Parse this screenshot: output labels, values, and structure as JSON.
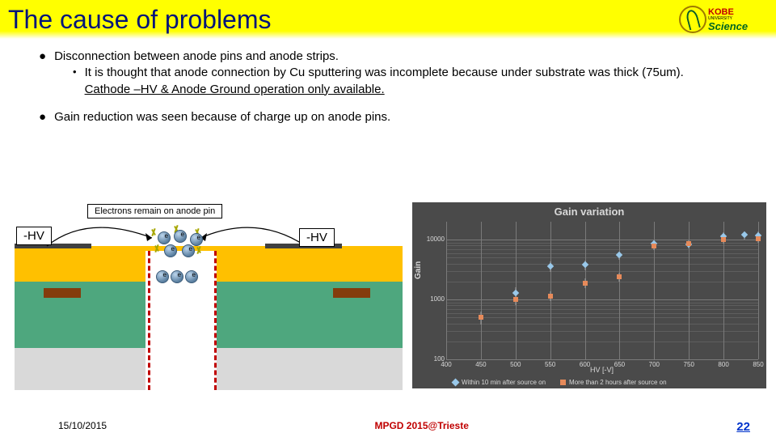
{
  "title": "The cause of problems",
  "logo": {
    "line1": "KOBE",
    "line2": "UNIVERSITY",
    "line3": "Science"
  },
  "bullets": {
    "b1": "Disconnection between anode pins and anode strips.",
    "b1a": "It is thought that anode connection by Cu sputtering was incomplete because under substrate was thick (75um).",
    "b1b": "Cathode –HV & Anode Ground operation only available.",
    "b2": "Gain reduction was seen because of charge up on anode pins."
  },
  "diagram": {
    "electron_label": "Electrons remain on anode pin",
    "hv_left": "-HV",
    "hv_right": "-HV",
    "colors": {
      "top": "#ffc000",
      "mid": "#4ea77e",
      "bot": "#d9d9d9",
      "cathode": "#404040",
      "strip": "#843c0c",
      "dash": "#c00000"
    }
  },
  "chart": {
    "type": "scatter",
    "title": "Gain variation",
    "ylabel": "Gain",
    "xlabel": "HV [-V]",
    "background": "#4a4a4a",
    "xlim": [
      400,
      850
    ],
    "xtick_step": 50,
    "xticks": [
      "400",
      "450",
      "500",
      "550",
      "600",
      "650",
      "700",
      "750",
      "800",
      "850"
    ],
    "yscale": "log",
    "ylim": [
      100,
      20000
    ],
    "yticks": [
      {
        "v": 100,
        "label": "100"
      },
      {
        "v": 1000,
        "label": "1000"
      },
      {
        "v": 10000,
        "label": "10000"
      }
    ],
    "series": [
      {
        "name": "within10",
        "label": "Within 10 min after source on",
        "marker": "diamond",
        "color": "#99c8ea",
        "points": [
          {
            "x": 500,
            "y": 1300,
            "err": 300
          },
          {
            "x": 550,
            "y": 3600,
            "err": 700
          },
          {
            "x": 600,
            "y": 3800,
            "err": 700
          },
          {
            "x": 650,
            "y": 5500,
            "err": 900
          },
          {
            "x": 700,
            "y": 8500,
            "err": 1200
          },
          {
            "x": 750,
            "y": 8300,
            "err": 1200
          },
          {
            "x": 800,
            "y": 11500,
            "err": 1700
          },
          {
            "x": 830,
            "y": 12000,
            "err": 1800
          },
          {
            "x": 850,
            "y": 11800,
            "err": 1800
          }
        ]
      },
      {
        "name": "after2h",
        "label": "More than 2 hours after source on",
        "marker": "square",
        "color": "#e68a5a",
        "points": [
          {
            "x": 450,
            "y": 500,
            "err": 120
          },
          {
            "x": 500,
            "y": 1000,
            "err": 200
          },
          {
            "x": 550,
            "y": 1150,
            "err": 220
          },
          {
            "x": 600,
            "y": 1900,
            "err": 350
          },
          {
            "x": 650,
            "y": 2400,
            "err": 400
          },
          {
            "x": 700,
            "y": 7800,
            "err": 1100
          },
          {
            "x": 750,
            "y": 8600,
            "err": 1200
          },
          {
            "x": 800,
            "y": 10200,
            "err": 1500
          },
          {
            "x": 850,
            "y": 10500,
            "err": 1600
          }
        ]
      }
    ],
    "legend": {
      "s1": "Within 10 min after source on",
      "s2": "More than 2 hours after source on"
    }
  },
  "footer": {
    "date": "15/10/2015",
    "center": "MPGD 2015@Trieste",
    "page": "22"
  }
}
